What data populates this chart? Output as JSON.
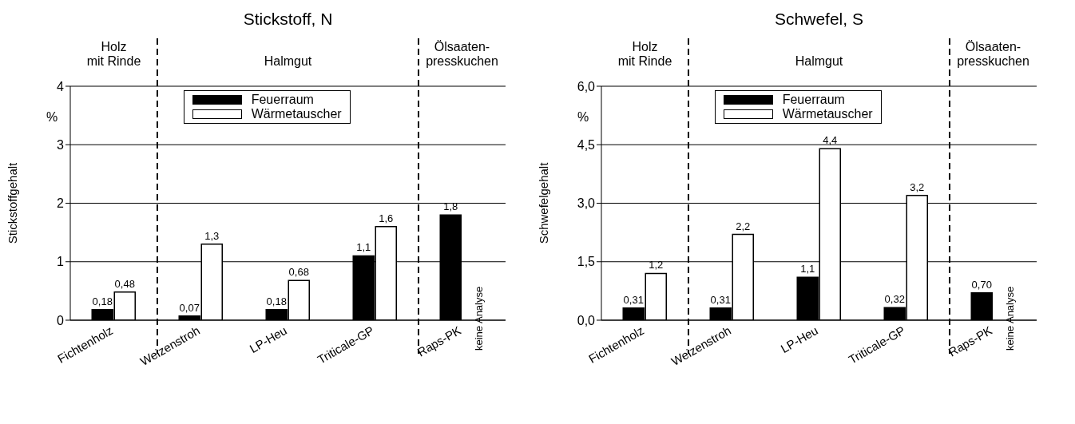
{
  "chart_data": [
    {
      "type": "bar",
      "title": "Stickstoff, N",
      "ylabel": "Stickstoffgehalt",
      "categories": [
        "Fichtenholz",
        "Weizenstroh",
        "LP-Heu",
        "Triticale-GP",
        "Raps-PK"
      ],
      "series": [
        {
          "name": "Feuerraum",
          "color": "#000000",
          "values": [
            0.18,
            0.07,
            0.18,
            1.1,
            1.8
          ],
          "value_labels": [
            "0,18",
            "0,07",
            "0,18",
            "1,1",
            "1,8"
          ]
        },
        {
          "name": "Wärmetauscher",
          "color": "#ffffff",
          "values": [
            0.48,
            1.3,
            0.68,
            1.6,
            null
          ],
          "value_labels": [
            "0,48",
            "1,3",
            "0,68",
            "1,6",
            null
          ]
        }
      ],
      "ylim": [
        0,
        4
      ],
      "yticks": [
        0,
        1,
        2,
        3,
        4
      ],
      "grid": "y",
      "legend": "top",
      "annotations": [
        "Holz\nmit Rinde",
        "Halmgut",
        "Ölsaaten-\npresskuchen",
        "%",
        {
          "text": "keine Analyse",
          "x": "Raps-PK"
        }
      ]
    },
    {
      "type": "bar",
      "title": "Schwefel, S",
      "ylabel": "Schwefelgehalt",
      "categories": [
        "Fichtenholz",
        "Weizenstroh",
        "LP-Heu",
        "Triticale-GP",
        "Raps-PK"
      ],
      "series": [
        {
          "name": "Feuerraum",
          "color": "#000000",
          "values": [
            0.31,
            0.31,
            1.1,
            0.32,
            0.7
          ],
          "value_labels": [
            "0,31",
            "0,31",
            "1,1",
            "0,32",
            "0,70"
          ]
        },
        {
          "name": "Wärmetauscher",
          "color": "#ffffff",
          "values": [
            1.2,
            2.2,
            4.4,
            3.2,
            null
          ],
          "value_labels": [
            "1,2",
            "2,2",
            "4,4",
            "3,2",
            null
          ]
        }
      ],
      "ylim": [
        0,
        6
      ],
      "yticks": [
        {
          "value": 0,
          "label": "0,0"
        },
        {
          "value": 1.5,
          "label": "1,5"
        },
        {
          "value": 3,
          "label": "3,0"
        },
        {
          "value": 4.5,
          "label": "4,5"
        },
        {
          "value": 6,
          "label": "6,0"
        }
      ],
      "grid": "y",
      "legend": "top",
      "annotations": [
        "Holz\nmit Rinde",
        "Halmgut",
        "Ölsaaten-\npresskuchen",
        "%",
        {
          "text": "keine Analyse",
          "x": "Raps-PK"
        }
      ]
    }
  ]
}
